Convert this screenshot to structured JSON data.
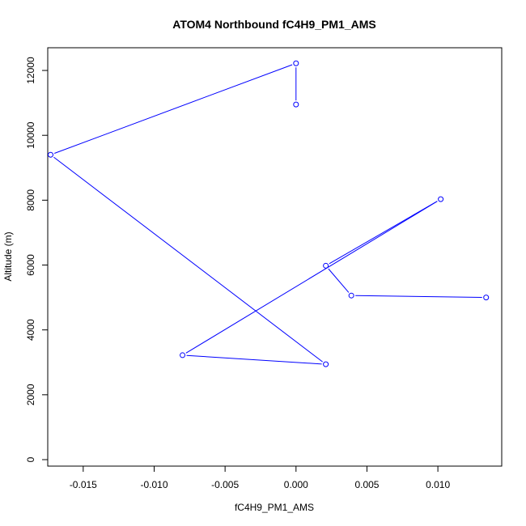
{
  "chart_data": {
    "type": "line",
    "title": "ATOM4 Northbound fC4H9_PM1_AMS",
    "xlabel": "fC4H9_PM1_AMS",
    "ylabel": "Altitude (m)",
    "xlim": [
      -0.0175,
      0.0145
    ],
    "ylim": [
      -200,
      12700
    ],
    "x_ticks": [
      -0.015,
      -0.01,
      -0.005,
      0.0,
      0.005,
      0.01
    ],
    "x_tick_labels": [
      "-0.015",
      "-0.010",
      "-0.005",
      "0.000",
      "0.005",
      "0.010"
    ],
    "y_ticks": [
      0,
      2000,
      4000,
      6000,
      8000,
      10000,
      12000
    ],
    "y_tick_labels": [
      "0",
      "2000",
      "4000",
      "6000",
      "8000",
      "10000",
      "12000"
    ],
    "series": [
      {
        "color": "#0000ff",
        "x": [
          0.0,
          0.0,
          -0.0173,
          0.0021,
          -0.008,
          0.0102,
          0.0021,
          0.0039,
          0.0134
        ],
        "y": [
          10950,
          12220,
          9400,
          2940,
          3220,
          8030,
          5980,
          5060,
          5000
        ]
      }
    ],
    "grid": false,
    "legend": "none"
  }
}
